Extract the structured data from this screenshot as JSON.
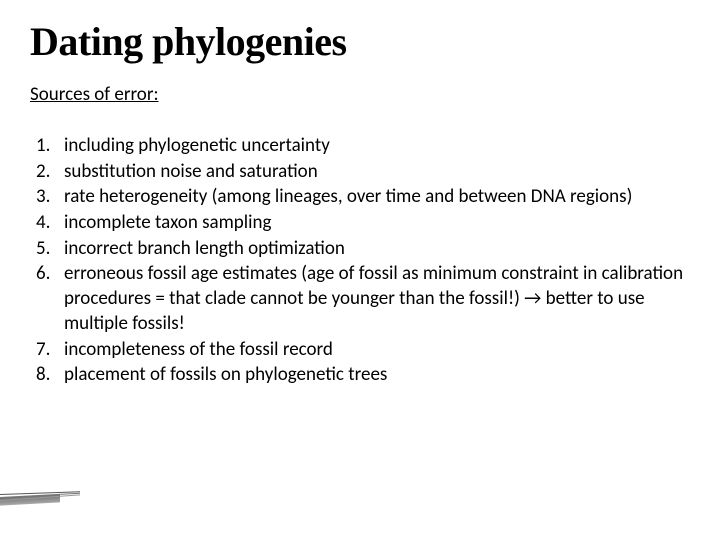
{
  "title": "Dating phylogenies",
  "subtitle": "Sources of error:",
  "items": [
    {
      "n": "1.",
      "t": "including phylogenetic uncertainty"
    },
    {
      "n": "2.",
      "t": "substitution noise and saturation"
    },
    {
      "n": "3.",
      "t": "rate heterogeneity (among lineages, over time and between DNA regions)"
    },
    {
      "n": "4.",
      "t": "incomplete taxon sampling"
    },
    {
      "n": "5.",
      "t": "incorrect branch length optimization"
    },
    {
      "n": "6.",
      "t": "erroneous fossil age estimates (age of fossil as minimum constraint in calibration procedures = that clade cannot be younger than the fossil!) → better to use multiple fossils!"
    },
    {
      "n": "7.",
      "t": "incompleteness of the fossil record"
    },
    {
      "n": "8.",
      "t": "placement of fossils on phylogenetic trees"
    }
  ],
  "colors": {
    "background": "#ffffff",
    "text": "#000000"
  }
}
